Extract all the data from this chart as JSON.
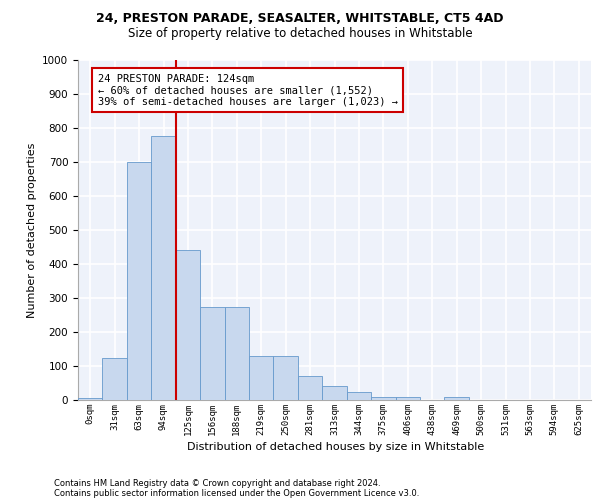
{
  "title1": "24, PRESTON PARADE, SEASALTER, WHITSTABLE, CT5 4AD",
  "title2": "Size of property relative to detached houses in Whitstable",
  "xlabel": "Distribution of detached houses by size in Whitstable",
  "ylabel": "Number of detached properties",
  "bar_values": [
    5,
    125,
    700,
    775,
    440,
    275,
    275,
    130,
    130,
    70,
    40,
    25,
    10,
    10,
    0,
    10,
    0,
    0,
    0,
    0,
    0
  ],
  "bin_labels": [
    "0sqm",
    "31sqm",
    "63sqm",
    "94sqm",
    "125sqm",
    "156sqm",
    "188sqm",
    "219sqm",
    "250sqm",
    "281sqm",
    "313sqm",
    "344sqm",
    "375sqm",
    "406sqm",
    "438sqm",
    "469sqm",
    "500sqm",
    "531sqm",
    "563sqm",
    "594sqm",
    "625sqm"
  ],
  "bar_color": "#c8d8ee",
  "bar_edge_color": "#6699cc",
  "background_color": "#eef2fa",
  "grid_color": "#ffffff",
  "vline_color": "#cc0000",
  "vline_pos": 4.0,
  "annotation_line1": "24 PRESTON PARADE: 124sqm",
  "annotation_line2": "← 60% of detached houses are smaller (1,552)",
  "annotation_line3": "39% of semi-detached houses are larger (1,023) →",
  "annotation_box_color": "#ffffff",
  "annotation_box_edge": "#cc0000",
  "ylim": [
    0,
    1000
  ],
  "yticks": [
    0,
    100,
    200,
    300,
    400,
    500,
    600,
    700,
    800,
    900,
    1000
  ],
  "footer1": "Contains HM Land Registry data © Crown copyright and database right 2024.",
  "footer2": "Contains public sector information licensed under the Open Government Licence v3.0."
}
